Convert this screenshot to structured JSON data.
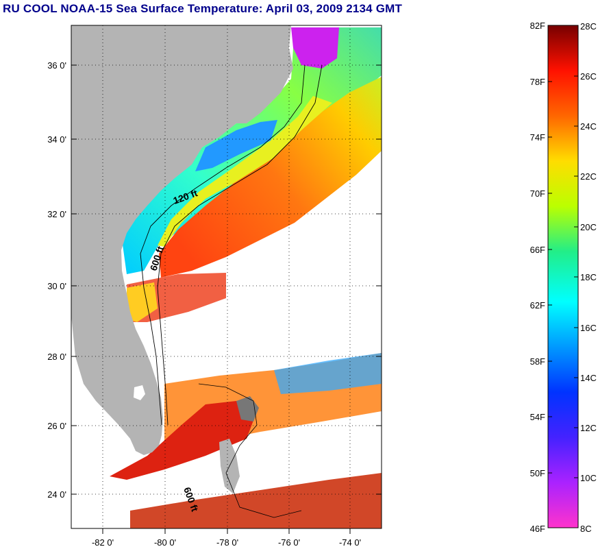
{
  "title": "RU COOL  NOAA-15  Sea Surface Temperature:  April 03, 2009 2134 GMT",
  "map": {
    "lat_ticks": [
      "36 0'",
      "34 0'",
      "32 0'",
      "30 0'",
      "28 0'",
      "26 0'",
      "24 0'"
    ],
    "lon_ticks": [
      "-82 0'",
      "-80 0'",
      "-78 0'",
      "-76 0'",
      "-74 0'"
    ],
    "isobaths": [
      "120 ft",
      "600 ft",
      "600 ft"
    ]
  },
  "colorbar": {
    "fahrenheit": [
      "82F",
      "78F",
      "74F",
      "70F",
      "66F",
      "62F",
      "58F",
      "54F",
      "50F",
      "46F"
    ],
    "celsius": [
      "28C",
      "26C",
      "24C",
      "22C",
      "20C",
      "18C",
      "16C",
      "14C",
      "12C",
      "10C",
      "8C"
    ]
  },
  "colors": {
    "title": "#00008b",
    "land": "#b4b4b4",
    "no_data": "#ffffff"
  }
}
